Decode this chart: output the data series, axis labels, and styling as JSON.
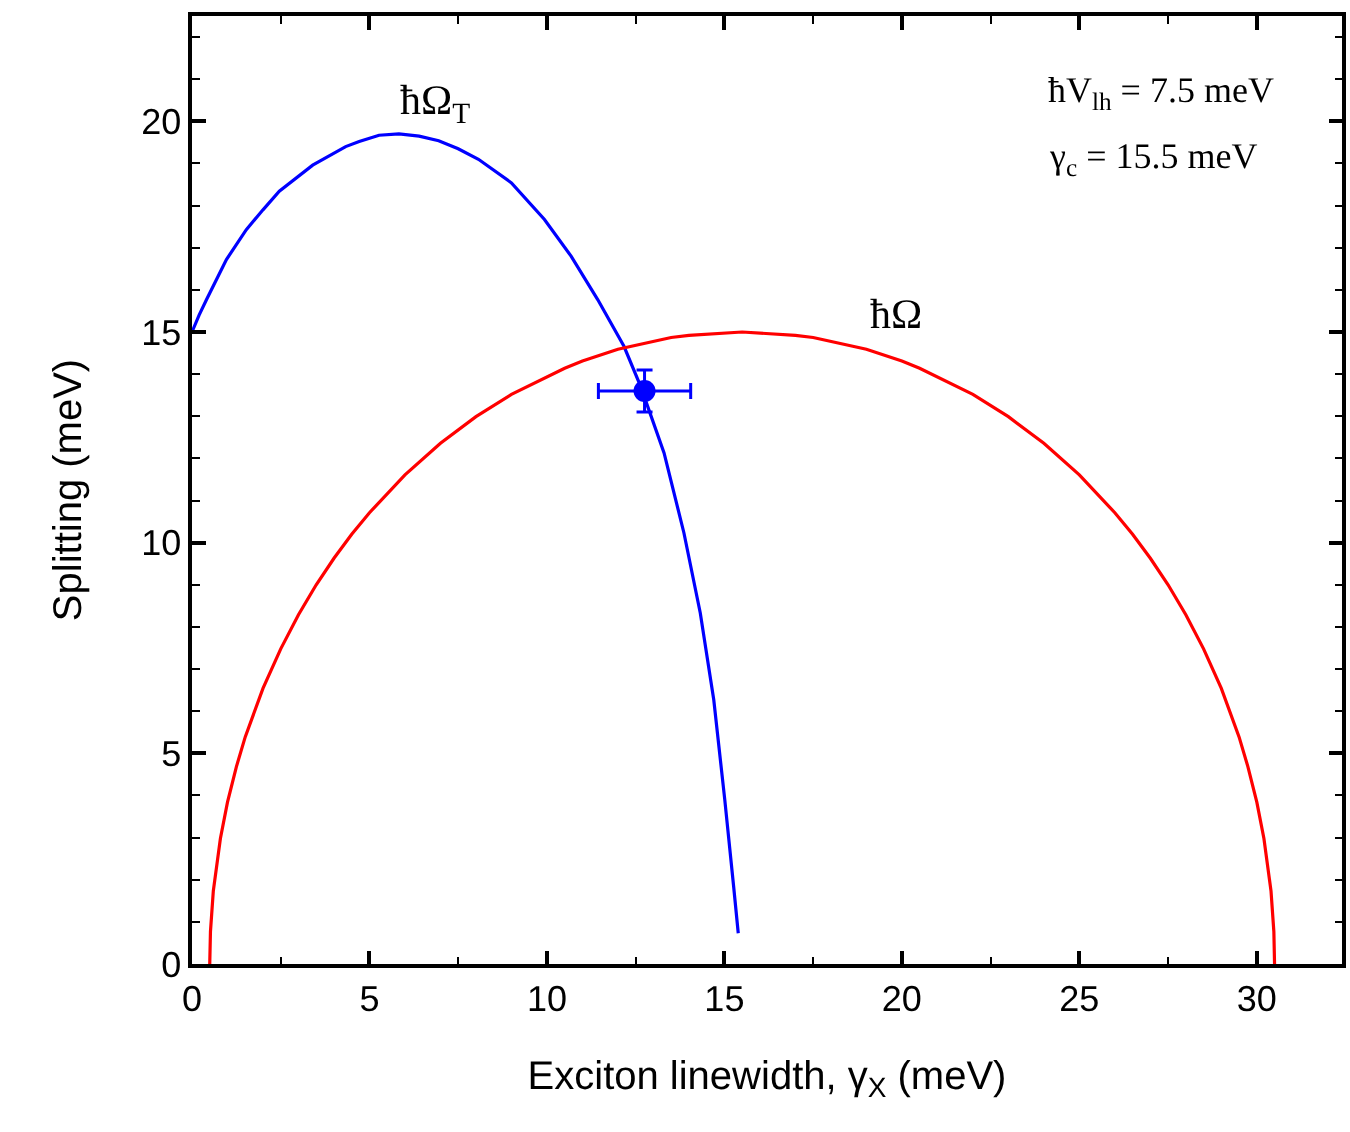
{
  "chart_data": {
    "type": "line",
    "xlabel": "Exciton linewidth, γ$_{X}$ (meV)",
    "ylabel": "Splitting (meV)",
    "xlim": [
      0,
      32.4
    ],
    "ylim": [
      0,
      22.5
    ],
    "xticks": [
      0,
      {
        "value": 2.5,
        "label": null
      },
      5,
      {
        "value": 7.5,
        "label": null
      },
      10,
      {
        "value": 12.5,
        "label": null
      },
      15,
      {
        "value": 17.5,
        "label": null
      },
      20,
      {
        "value": 22.5,
        "label": null
      },
      25,
      {
        "value": 27.5,
        "label": null
      },
      30
    ],
    "yticks": [
      0,
      {
        "value": 1,
        "label": null
      },
      {
        "value": 2,
        "label": null
      },
      {
        "value": 3,
        "label": null
      },
      {
        "value": 4,
        "label": null
      },
      5,
      {
        "value": 6,
        "label": null
      },
      {
        "value": 7,
        "label": null
      },
      {
        "value": 8,
        "label": null
      },
      {
        "value": 9,
        "label": null
      },
      10,
      {
        "value": 11,
        "label": null
      },
      {
        "value": 12,
        "label": null
      },
      {
        "value": 13,
        "label": null
      },
      {
        "value": 14,
        "label": null
      },
      15,
      {
        "value": 16,
        "label": null
      },
      {
        "value": 17,
        "label": null
      },
      {
        "value": 18,
        "label": null
      },
      {
        "value": 19,
        "label": null
      },
      20,
      {
        "value": 21,
        "label": null
      },
      {
        "value": 22,
        "label": null
      }
    ],
    "grid": false,
    "legend": false,
    "annotations": [
      "ħV$_{lh}$ = 7.5 meV",
      "γ$_{c}$ = 15.5 meV"
    ],
    "series": [
      {
        "name": "ħΩ$_{T}$",
        "color": "#0000ff",
        "marker": "none",
        "x": [
          0,
          0.2,
          0.41,
          0.97,
          1.53,
          2.0,
          2.46,
          3.4,
          4.33,
          4.71,
          5.27,
          5.83,
          6.4,
          6.95,
          7.5,
          8.07,
          9.0,
          9.93,
          10.68,
          11.43,
          12.17,
          12.64,
          13.3,
          13.86,
          14.32,
          14.7,
          15.01,
          15.26,
          15.39
        ],
        "values": [
          15,
          15.4,
          15.77,
          16.72,
          17.43,
          17.9,
          18.34,
          18.96,
          19.4,
          19.52,
          19.67,
          19.7,
          19.65,
          19.54,
          19.35,
          19.1,
          18.54,
          17.67,
          16.8,
          15.77,
          14.66,
          13.71,
          12.13,
          10.23,
          8.33,
          6.27,
          3.9,
          1.84,
          0.73
        ]
      },
      {
        "name": "ħΩ",
        "color": "#ff0000",
        "marker": "none",
        "x": [
          0.5,
          0.52,
          0.6,
          0.8,
          1.0,
          1.25,
          1.5,
          2.0,
          2.5,
          3.0,
          3.5,
          4.0,
          4.5,
          5.0,
          6.0,
          7.0,
          8.0,
          9.0,
          10.5,
          11.0,
          12.0,
          13.5,
          14.0,
          15.5,
          17.0,
          17.5,
          19.0,
          20.0,
          20.5,
          22.0,
          23.0,
          24.0,
          25.0,
          26.0,
          26.5,
          27.0,
          27.5,
          28.0,
          28.5,
          29.0,
          29.5,
          29.75,
          30.0,
          30.2,
          30.4,
          30.48,
          30.5
        ],
        "values": [
          0,
          0.77,
          1.73,
          2.98,
          3.84,
          4.68,
          5.39,
          6.54,
          7.48,
          8.29,
          9.0,
          9.63,
          10.2,
          10.71,
          11.61,
          12.36,
          12.99,
          13.52,
          14.14,
          14.31,
          14.59,
          14.87,
          14.92,
          15,
          14.92,
          14.87,
          14.59,
          14.31,
          14.14,
          13.52,
          12.99,
          12.36,
          11.61,
          10.71,
          10.2,
          9.63,
          9.0,
          8.29,
          7.48,
          6.54,
          5.39,
          4.68,
          3.84,
          2.98,
          1.73,
          0.77,
          0
        ]
      },
      {
        "type": "scatter",
        "color": "#0000ff",
        "marker": "circle",
        "x": [
          12.75
        ],
        "values": [
          13.6
        ],
        "errors": [
          0.5
        ],
        "xerrors": [
          1.3
        ]
      }
    ]
  }
}
